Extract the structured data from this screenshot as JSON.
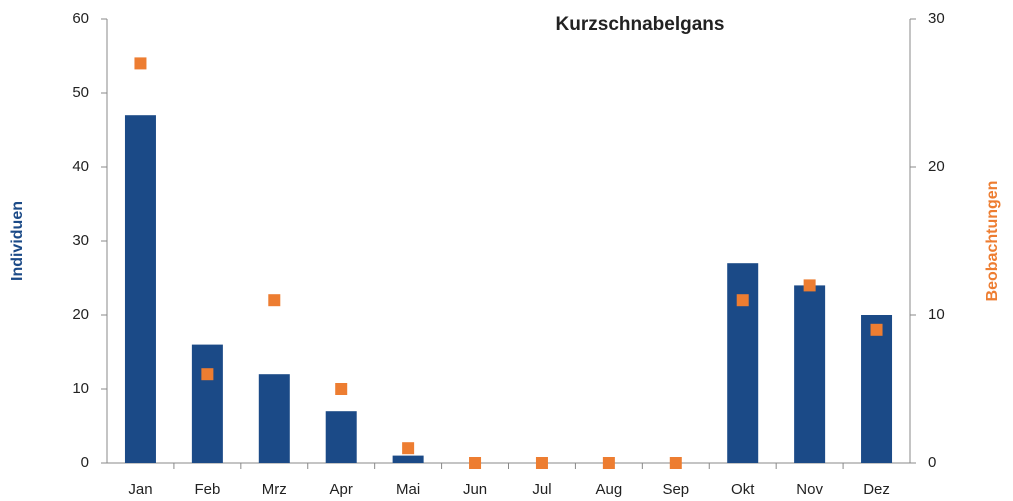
{
  "chart_data": {
    "type": "bar",
    "title": "Kurzschnabelgans",
    "ylabel": "Individuen",
    "y2label": "Beobachtungen",
    "categories": [
      "Jan",
      "Feb",
      "Mrz",
      "Apr",
      "Mai",
      "Jun",
      "Jul",
      "Aug",
      "Sep",
      "Okt",
      "Nov",
      "Dez"
    ],
    "series": [
      {
        "type": "bar",
        "color": "#1b4a87",
        "values": [
          47,
          16,
          12,
          7,
          1,
          0,
          0,
          0,
          0,
          27,
          24,
          20
        ]
      },
      {
        "type": "scatter",
        "axis": "y2",
        "color": "#ed7d31",
        "values": [
          27,
          6,
          11,
          5,
          1,
          0,
          0,
          0,
          0,
          11,
          12,
          9
        ]
      }
    ],
    "ylim": [
      0,
      60
    ],
    "yticks": [
      0,
      10,
      20,
      30,
      40,
      50,
      60
    ],
    "y2lim": [
      0,
      30
    ],
    "y2ticks": [
      0,
      10,
      20,
      30
    ],
    "grid": false
  }
}
